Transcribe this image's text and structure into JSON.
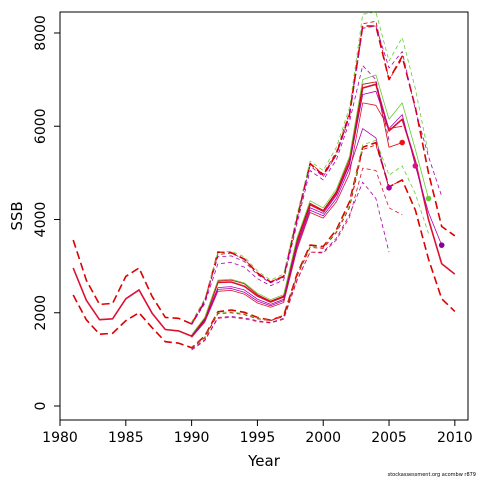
{
  "chart_data": {
    "type": "line",
    "xlabel": "Year",
    "ylabel": "SSB",
    "xlim": [
      1980,
      2011
    ],
    "ylim": [
      -300,
      8450
    ],
    "x_ticks": [
      1980,
      1985,
      1990,
      1995,
      2000,
      2005,
      2010
    ],
    "y_ticks": [
      0,
      2000,
      4000,
      6000,
      8000
    ],
    "grid": false,
    "series": [
      {
        "style": "dashed",
        "color": "#dd0000",
        "width": 1.6,
        "x": [
          1981,
          1982,
          1983,
          1984,
          1985,
          1986,
          1987,
          1988,
          1989,
          1990,
          1991,
          1992,
          1993,
          1994,
          1995,
          1996,
          1997,
          1998,
          1999,
          2000,
          2001,
          2002,
          2003,
          2004,
          2005,
          2006,
          2007,
          2008,
          2009,
          2010
        ],
        "y": [
          3560,
          2700,
          2180,
          2200,
          2780,
          2960,
          2350,
          1900,
          1880,
          1760,
          2240,
          3300,
          3290,
          3150,
          2850,
          2660,
          2780,
          4000,
          5200,
          4950,
          5400,
          6250,
          8150,
          8150,
          7000,
          7500,
          6400,
          5000,
          3850,
          3650
        ]
      },
      {
        "style": "dashed",
        "color": "#dd0000",
        "width": 1.6,
        "x": [
          1981,
          1982,
          1983,
          1984,
          1985,
          1986,
          1987,
          1988,
          1989,
          1990,
          1991,
          1992,
          1993,
          1994,
          1995,
          1996,
          1997,
          1998,
          1999,
          2000,
          2001,
          2002,
          2003,
          2004,
          2005,
          2006,
          2007,
          2008,
          2009,
          2010
        ],
        "y": [
          2380,
          1850,
          1540,
          1560,
          1830,
          2000,
          1680,
          1380,
          1350,
          1250,
          1500,
          2020,
          2060,
          2010,
          1900,
          1840,
          1940,
          2820,
          3450,
          3420,
          3780,
          4380,
          5550,
          5650,
          4700,
          4850,
          4200,
          3150,
          2300,
          2030
        ]
      },
      {
        "style": "solid",
        "color": "#dd1133",
        "width": 1.6,
        "x": [
          1981,
          1982,
          1983,
          1984,
          1985,
          1986,
          1987,
          1988,
          1989,
          1990,
          1991,
          1992,
          1993,
          1994,
          1995,
          1996,
          1997,
          1998,
          1999,
          2000,
          2001,
          2002,
          2003,
          2004,
          2005,
          2006,
          2007,
          2008,
          2009,
          2010
        ],
        "y": [
          2960,
          2270,
          1850,
          1870,
          2300,
          2490,
          1990,
          1640,
          1610,
          1500,
          1870,
          2650,
          2660,
          2570,
          2360,
          2230,
          2340,
          3520,
          4320,
          4180,
          4560,
          5220,
          6820,
          6900,
          5900,
          6150,
          5250,
          4000,
          3050,
          2830
        ]
      },
      {
        "style": "solid",
        "color": "#cc0000",
        "width": 0.8,
        "x": [
          1990,
          1991,
          1992,
          1993,
          1994,
          1995,
          1996,
          1997,
          1998,
          1999,
          2000,
          2001,
          2002,
          2003,
          2004,
          2005,
          2006
        ],
        "y": [
          1510,
          1880,
          2680,
          2700,
          2620,
          2390,
          2250,
          2360,
          3560,
          4350,
          4200,
          4600,
          5300,
          6900,
          6950,
          5550,
          5650
        ]
      },
      {
        "style": "solid",
        "color": "#66cc33",
        "width": 0.8,
        "x": [
          1990,
          1991,
          1992,
          1993,
          1994,
          1995,
          1996,
          1997,
          1998,
          1999,
          2000,
          2001,
          2002,
          2003,
          2004,
          2005,
          2006,
          2007,
          2008
        ],
        "y": [
          1530,
          1900,
          2700,
          2720,
          2640,
          2420,
          2280,
          2390,
          3600,
          4400,
          4250,
          4650,
          5350,
          7000,
          7100,
          6150,
          6500,
          5500,
          4450
        ]
      },
      {
        "style": "solid",
        "color": "#aa00aa",
        "width": 0.8,
        "x": [
          1990,
          1991,
          1992,
          1993,
          1994,
          1995,
          1996,
          1997,
          1998,
          1999,
          2000,
          2001,
          2002,
          2003,
          2004,
          2005,
          2006,
          2007,
          2008,
          2009
        ],
        "y": [
          1490,
          1840,
          2540,
          2560,
          2490,
          2290,
          2180,
          2290,
          3450,
          4250,
          4130,
          4520,
          5180,
          6680,
          6750,
          5950,
          6250,
          5150,
          4150,
          3450
        ]
      },
      {
        "style": "solid",
        "color": "#aa00aa",
        "width": 0.8,
        "x": [
          1990,
          1991,
          1992,
          1993,
          1994,
          1995,
          1996,
          1997,
          1998,
          1999,
          2000,
          2001,
          2002,
          2003,
          2004,
          2005
        ],
        "y": [
          1480,
          1820,
          2500,
          2520,
          2440,
          2250,
          2150,
          2260,
          3400,
          4200,
          4080,
          4450,
          5100,
          5950,
          5750,
          4650
        ]
      },
      {
        "style": "solid",
        "color": "#dd1133",
        "width": 0.8,
        "x": [
          1990,
          1991,
          1992,
          1993,
          1994,
          1995,
          1996,
          1997,
          1998,
          1999,
          2000,
          2001,
          2002,
          2003,
          2004,
          2005,
          2006
        ],
        "y": [
          1470,
          1800,
          2460,
          2480,
          2400,
          2210,
          2120,
          2220,
          3350,
          4150,
          4030,
          4380,
          4980,
          6500,
          6450,
          5950,
          6000
        ]
      },
      {
        "style": "dashed",
        "color": "#dd0000",
        "width": 0.8,
        "x": [
          1990,
          1991,
          1992,
          1993,
          1994,
          1995,
          1996,
          1997,
          1998,
          1999,
          2000,
          2001,
          2002,
          2003,
          2004,
          2005,
          2006
        ],
        "y": [
          1780,
          2280,
          3250,
          3280,
          3150,
          2850,
          2660,
          2790,
          4050,
          5200,
          4980,
          5450,
          6300,
          8200,
          8250,
          7000,
          7450
        ]
      },
      {
        "style": "dashed",
        "color": "#66cc33",
        "width": 0.8,
        "x": [
          1990,
          1991,
          1992,
          1993,
          1994,
          1995,
          1996,
          1997,
          1998,
          1999,
          2000,
          2001,
          2002,
          2003,
          2004,
          2005,
          2006,
          2007,
          2008
        ],
        "y": [
          1800,
          2300,
          3300,
          3320,
          3200,
          2900,
          2700,
          2830,
          4100,
          5250,
          5050,
          5550,
          6400,
          8400,
          8450,
          7400,
          7900,
          6800,
          5400
        ]
      },
      {
        "style": "dashed",
        "color": "#aa00aa",
        "width": 0.8,
        "x": [
          1990,
          1991,
          1992,
          1993,
          1994,
          1995,
          1996,
          1997,
          1998,
          1999,
          2000,
          2001,
          2002,
          2003,
          2004,
          2005,
          2006,
          2007,
          2008,
          2009
        ],
        "y": [
          1760,
          2250,
          3200,
          3220,
          3100,
          2820,
          2640,
          2760,
          4000,
          5150,
          4920,
          5380,
          6200,
          8100,
          8150,
          7250,
          7600,
          6350,
          5350,
          4500
        ]
      },
      {
        "style": "dashed",
        "color": "#aa00aa",
        "width": 0.8,
        "x": [
          1990,
          1991,
          1992,
          1993,
          1994,
          1995,
          1996,
          1997,
          1998,
          1999,
          2000,
          2001,
          2002,
          2003,
          2004,
          2005
        ],
        "y": [
          1740,
          2200,
          3050,
          3080,
          2980,
          2730,
          2580,
          2700,
          3900,
          5050,
          4850,
          5280,
          6100,
          7300,
          7000,
          5700
        ]
      },
      {
        "style": "dashed",
        "color": "#aa00aa",
        "width": 0.8,
        "x": [
          1990,
          1991,
          1992,
          1993,
          1994,
          1995,
          1996,
          1997,
          1998,
          1999,
          2000,
          2001,
          2002,
          2003,
          2004,
          2005
        ],
        "y": [
          1220,
          1420,
          1900,
          1920,
          1890,
          1830,
          1790,
          1880,
          2700,
          3300,
          3300,
          3600,
          4100,
          4800,
          4450,
          3300
        ]
      },
      {
        "style": "dashed",
        "color": "#dd1133",
        "width": 0.8,
        "x": [
          1990,
          1991,
          1992,
          1993,
          1994,
          1995,
          1996,
          1997,
          1998,
          1999,
          2000,
          2001,
          2002,
          2003,
          2004,
          2005,
          2006
        ],
        "y": [
          1200,
          1400,
          1880,
          1900,
          1870,
          1810,
          1780,
          1860,
          2680,
          3300,
          3280,
          3560,
          4050,
          5100,
          5050,
          4250,
          4100
        ]
      },
      {
        "style": "dashed",
        "color": "#66cc33",
        "width": 0.8,
        "x": [
          1990,
          1991,
          1992,
          1993,
          1994,
          1995,
          1996,
          1997,
          1998,
          1999,
          2000,
          2001,
          2002,
          2003,
          2004,
          2005,
          2006,
          2007,
          2008
        ],
        "y": [
          1250,
          1480,
          2000,
          2020,
          1980,
          1890,
          1840,
          1930,
          2800,
          3420,
          3400,
          3750,
          4300,
          5600,
          5700,
          4950,
          5150,
          4550,
          3700
        ]
      },
      {
        "style": "dashed",
        "color": "#cc0000",
        "width": 0.8,
        "x": [
          1990,
          1991,
          1992,
          1993,
          1994,
          1995,
          1996,
          1997,
          1998,
          1999,
          2000,
          2001,
          2002,
          2003,
          2004,
          2005,
          2006
        ],
        "y": [
          1240,
          1460,
          1980,
          2000,
          1960,
          1870,
          1830,
          1920,
          2780,
          3400,
          3380,
          3720,
          4250,
          5500,
          5600,
          4700,
          4850
        ]
      }
    ],
    "points": [
      {
        "x": 2005,
        "y": 4680,
        "color": "#aa00aa"
      },
      {
        "x": 2006,
        "y": 5650,
        "color": "#ee1111"
      },
      {
        "x": 2007,
        "y": 5150,
        "color": "#dd1177"
      },
      {
        "x": 2008,
        "y": 4450,
        "color": "#66cc33"
      },
      {
        "x": 2009,
        "y": 3450,
        "color": "#880099"
      }
    ]
  },
  "footer": "stockassessment.org acombw r879"
}
